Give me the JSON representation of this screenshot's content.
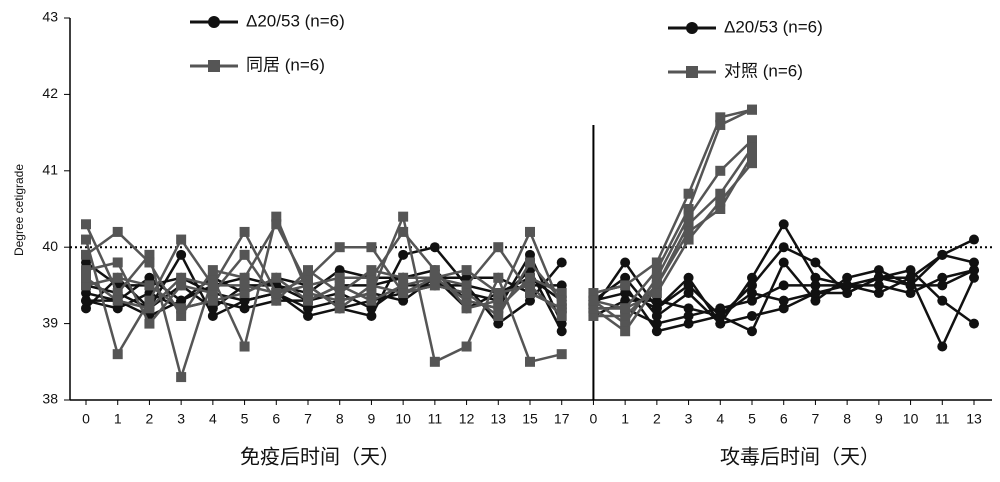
{
  "chart_data": {
    "type": "line",
    "y_label": "Degree cetigrade",
    "x_group_labels": [
      "免疫后时间（天）",
      "攻毒后时间（天）"
    ],
    "categories": [
      "0",
      "1",
      "2",
      "3",
      "4",
      "5",
      "6",
      "7",
      "8",
      "9",
      "10",
      "11",
      "12",
      "13",
      "15",
      "17",
      "0",
      "1",
      "2",
      "3",
      "4",
      "5",
      "6",
      "7",
      "8",
      "9",
      "10",
      "11",
      "13"
    ],
    "ylim": [
      38,
      43
    ],
    "yticks": [
      38,
      39,
      40,
      41,
      42,
      43
    ],
    "reference_line": 40,
    "divider_index": 16,
    "series": [
      {
        "name": "Δ20/53 (n=6)",
        "color": "#111111",
        "marker": "circle",
        "values": [
          [
            39.2,
            39.6,
            39.2,
            39.9,
            39.1,
            39.3,
            39.4,
            39.1,
            39.2,
            39.1,
            39.9,
            40.0,
            39.5,
            39.0,
            39.3,
            39.8,
            null,
            null,
            null,
            null,
            null,
            null,
            null,
            null,
            null,
            null,
            null,
            null,
            null
          ],
          [
            39.3,
            39.2,
            39.4,
            39.2,
            39.3,
            39.2,
            39.3,
            39.3,
            39.5,
            39.5,
            39.6,
            39.6,
            39.6,
            39.6,
            39.4,
            39.2,
            null,
            null,
            null,
            null,
            null,
            null,
            null,
            null,
            null,
            null,
            null,
            null,
            null
          ],
          [
            39.5,
            39.4,
            39.2,
            39.5,
            39.2,
            39.5,
            39.5,
            39.4,
            39.7,
            39.6,
            39.6,
            39.7,
            39.3,
            39.2,
            39.9,
            39.0,
            null,
            null,
            null,
            null,
            null,
            null,
            null,
            null,
            null,
            null,
            null,
            null,
            null
          ],
          [
            39.4,
            39.3,
            39.1,
            39.3,
            39.6,
            39.4,
            39.6,
            39.5,
            39.2,
            39.3,
            39.4,
            39.5,
            39.4,
            39.3,
            39.7,
            38.9,
            null,
            null,
            null,
            null,
            null,
            null,
            null,
            null,
            null,
            null,
            null,
            null,
            null
          ],
          [
            39.8,
            39.5,
            39.5,
            39.6,
            39.4,
            39.3,
            39.4,
            39.2,
            39.3,
            39.4,
            39.3,
            39.6,
            39.2,
            39.4,
            39.5,
            39.5,
            null,
            null,
            null,
            null,
            null,
            null,
            null,
            null,
            null,
            null,
            null,
            null,
            null
          ],
          [
            39.3,
            39.3,
            39.6,
            39.3,
            39.5,
            39.6,
            39.5,
            39.3,
            39.4,
            39.2,
            39.5,
            39.5,
            39.5,
            39.4,
            39.6,
            39.3,
            null,
            null,
            null,
            null,
            null,
            null,
            null,
            null,
            null,
            null,
            null,
            null,
            null
          ]
        ]
      },
      {
        "name": "同居 (n=6)",
        "color": "#555555",
        "marker": "square",
        "values": [
          [
            40.3,
            39.4,
            39.9,
            38.3,
            39.6,
            38.7,
            40.4,
            39.4,
            39.3,
            39.4,
            40.4,
            38.5,
            38.7,
            39.6,
            38.5,
            38.6,
            null,
            null,
            null,
            null,
            null,
            null,
            null,
            null,
            null,
            null,
            null,
            null,
            null
          ],
          [
            40.1,
            38.6,
            39.3,
            40.1,
            39.5,
            40.2,
            39.4,
            39.6,
            40.0,
            40.0,
            39.4,
            39.6,
            39.5,
            40.0,
            39.4,
            39.2,
            null,
            null,
            null,
            null,
            null,
            null,
            null,
            null,
            null,
            null,
            null,
            null,
            null
          ],
          [
            39.9,
            40.2,
            39.8,
            39.1,
            39.7,
            39.6,
            40.3,
            39.5,
            39.6,
            39.6,
            40.2,
            39.7,
            39.2,
            39.3,
            40.2,
            39.2,
            null,
            null,
            null,
            null,
            null,
            null,
            null,
            null,
            null,
            null,
            null,
            null,
            null
          ],
          [
            39.7,
            39.8,
            39.0,
            39.5,
            39.4,
            39.9,
            39.3,
            39.7,
            39.4,
            39.7,
            39.6,
            39.6,
            39.7,
            39.4,
            39.5,
            39.1,
            null,
            null,
            null,
            null,
            null,
            null,
            null,
            null,
            null,
            null,
            null,
            null,
            null
          ],
          [
            39.5,
            39.6,
            39.5,
            39.2,
            39.3,
            39.4,
            39.6,
            39.3,
            39.5,
            39.3,
            39.5,
            39.6,
            39.3,
            39.2,
            39.6,
            39.4,
            null,
            null,
            null,
            null,
            null,
            null,
            null,
            null,
            null,
            null,
            null,
            null,
            null
          ],
          [
            39.6,
            39.3,
            39.2,
            39.6,
            39.5,
            39.5,
            39.4,
            39.5,
            39.2,
            39.5,
            39.4,
            39.5,
            39.4,
            39.1,
            39.8,
            39.3,
            null,
            null,
            null,
            null,
            null,
            null,
            null,
            null,
            null,
            null,
            null,
            null,
            null
          ]
        ]
      },
      {
        "name": "Δ20/53 (n=6)",
        "color": "#111111",
        "marker": "circle",
        "values": [
          [
            null,
            null,
            null,
            null,
            null,
            null,
            null,
            null,
            null,
            null,
            null,
            null,
            null,
            null,
            null,
            null,
            39.2,
            39.8,
            39.2,
            39.6,
            39.0,
            39.6,
            40.3,
            39.6,
            39.5,
            39.6,
            39.6,
            39.9,
            39.8
          ],
          [
            null,
            null,
            null,
            null,
            null,
            null,
            null,
            null,
            null,
            null,
            null,
            null,
            null,
            null,
            null,
            null,
            39.4,
            39.5,
            38.9,
            39.0,
            39.1,
            38.9,
            39.8,
            39.3,
            39.6,
            39.7,
            39.5,
            39.9,
            40.1
          ],
          [
            null,
            null,
            null,
            null,
            null,
            null,
            null,
            null,
            null,
            null,
            null,
            null,
            null,
            null,
            null,
            null,
            39.1,
            39.3,
            39.3,
            39.2,
            39.1,
            39.5,
            40.0,
            39.8,
            39.4,
            39.6,
            39.7,
            39.3,
            39.0
          ],
          [
            null,
            null,
            null,
            null,
            null,
            null,
            null,
            null,
            null,
            null,
            null,
            null,
            null,
            null,
            null,
            null,
            39.3,
            39.6,
            39.1,
            39.4,
            39.0,
            39.1,
            39.2,
            39.4,
            39.5,
            39.5,
            39.4,
            39.6,
            39.7
          ],
          [
            null,
            null,
            null,
            null,
            null,
            null,
            null,
            null,
            null,
            null,
            null,
            null,
            null,
            null,
            null,
            null,
            39.2,
            39.2,
            39.0,
            39.1,
            39.2,
            39.3,
            39.5,
            39.5,
            39.5,
            39.4,
            39.6,
            38.7,
            39.6
          ],
          [
            null,
            null,
            null,
            null,
            null,
            null,
            null,
            null,
            null,
            null,
            null,
            null,
            null,
            null,
            null,
            null,
            39.3,
            39.4,
            39.2,
            39.5,
            39.1,
            39.4,
            39.3,
            39.4,
            39.4,
            39.6,
            39.5,
            39.5,
            39.7
          ]
        ]
      },
      {
        "name": "对照 (n=6)",
        "color": "#555555",
        "marker": "square",
        "values": [
          [
            null,
            null,
            null,
            null,
            null,
            null,
            null,
            null,
            null,
            null,
            null,
            null,
            null,
            null,
            null,
            null,
            39.4,
            39.5,
            39.8,
            40.7,
            41.7,
            41.8,
            null,
            null,
            null,
            null,
            null,
            null,
            null
          ],
          [
            null,
            null,
            null,
            null,
            null,
            null,
            null,
            null,
            null,
            null,
            null,
            null,
            null,
            null,
            null,
            null,
            39.2,
            39.2,
            39.7,
            40.5,
            41.6,
            41.8,
            null,
            null,
            null,
            null,
            null,
            null,
            null
          ],
          [
            null,
            null,
            null,
            null,
            null,
            null,
            null,
            null,
            null,
            null,
            null,
            null,
            null,
            null,
            null,
            null,
            39.3,
            39.0,
            39.6,
            40.4,
            41.0,
            41.4,
            null,
            null,
            null,
            null,
            null,
            null,
            null
          ],
          [
            null,
            null,
            null,
            null,
            null,
            null,
            null,
            null,
            null,
            null,
            null,
            null,
            null,
            null,
            null,
            null,
            39.1,
            39.1,
            39.5,
            40.3,
            40.7,
            41.3,
            null,
            null,
            null,
            null,
            null,
            null,
            null
          ],
          [
            null,
            null,
            null,
            null,
            null,
            null,
            null,
            null,
            null,
            null,
            null,
            null,
            null,
            null,
            null,
            null,
            39.2,
            38.9,
            39.5,
            40.2,
            40.5,
            41.2,
            null,
            null,
            null,
            null,
            null,
            null,
            null
          ],
          [
            null,
            null,
            null,
            null,
            null,
            null,
            null,
            null,
            null,
            null,
            null,
            null,
            null,
            null,
            null,
            null,
            39.3,
            39.2,
            39.4,
            40.1,
            40.6,
            41.1,
            null,
            null,
            null,
            null,
            null,
            null,
            null
          ]
        ]
      }
    ]
  }
}
